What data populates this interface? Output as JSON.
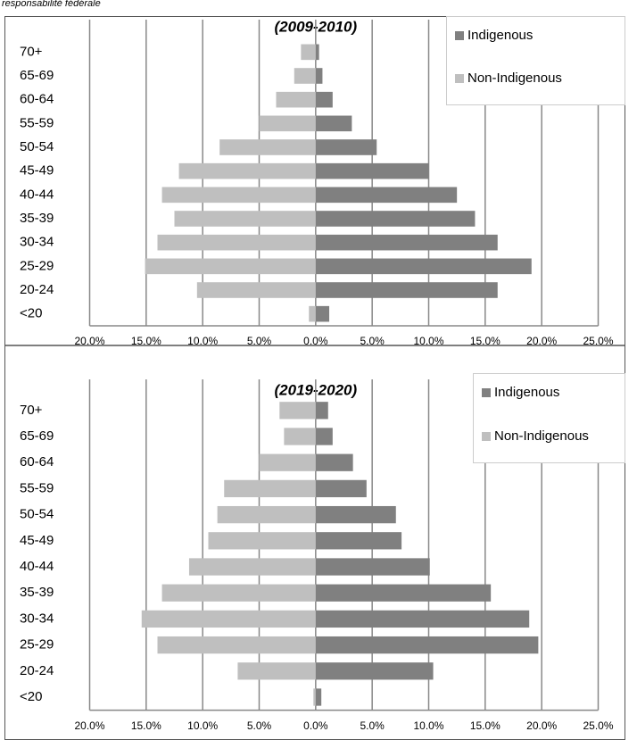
{
  "header": {
    "text": "responsabilité fédérale"
  },
  "chart_data": [
    {
      "type": "bar",
      "orientation": "horizontal",
      "title": "(2009-2010)",
      "categories": [
        "<20",
        "20-24",
        "25-29",
        "30-34",
        "35-39",
        "40-44",
        "45-49",
        "50-54",
        "55-59",
        "60-64",
        "65-69",
        "70+"
      ],
      "series": [
        {
          "name": "Indigenous",
          "color": "#808080",
          "values": [
            1.2,
            16.1,
            19.1,
            16.1,
            14.1,
            12.5,
            10.0,
            5.4,
            3.2,
            1.5,
            0.6,
            0.3
          ]
        },
        {
          "name": "Non-Indigenous",
          "color": "#bfbfbf",
          "values": [
            -0.6,
            -10.5,
            -15.1,
            -14.0,
            -12.5,
            -13.6,
            -12.1,
            -8.5,
            -5.0,
            -3.5,
            -1.9,
            -1.3
          ]
        }
      ],
      "xlim": [
        -20,
        25
      ],
      "xticks": [
        {
          "value": -20,
          "label": "20.0%"
        },
        {
          "value": -15,
          "label": "15.0%"
        },
        {
          "value": -10,
          "label": "10.0%"
        },
        {
          "value": -5,
          "label": "5.0%"
        },
        {
          "value": 0,
          "label": "0.0%"
        },
        {
          "value": 5,
          "label": "5.0%"
        },
        {
          "value": 10,
          "label": "10.0%"
        },
        {
          "value": 15,
          "label": "15.0%"
        },
        {
          "value": 20,
          "label": "20.0%"
        },
        {
          "value": 25,
          "label": "25.0%"
        }
      ],
      "grid": true,
      "legend": "top-right"
    },
    {
      "type": "bar",
      "orientation": "horizontal",
      "title": "(2019-2020)",
      "categories": [
        "<20",
        "20-24",
        "25-29",
        "30-34",
        "35-39",
        "40-44",
        "45-49",
        "50-54",
        "55-59",
        "60-64",
        "65-69",
        "70+"
      ],
      "series": [
        {
          "name": "Indigenous",
          "color": "#808080",
          "values": [
            0.5,
            10.4,
            19.7,
            18.9,
            15.5,
            10.1,
            7.6,
            7.1,
            4.5,
            3.3,
            1.5,
            1.1
          ]
        },
        {
          "name": "Non-Indigenous",
          "color": "#bfbfbf",
          "values": [
            -0.2,
            -6.9,
            -14.0,
            -15.4,
            -13.6,
            -11.2,
            -9.5,
            -8.7,
            -8.1,
            -5.0,
            -2.8,
            -3.2
          ]
        }
      ],
      "xlim": [
        -20,
        25
      ],
      "xticks": [
        {
          "value": -20,
          "label": "20.0%"
        },
        {
          "value": -15,
          "label": "15.0%"
        },
        {
          "value": -10,
          "label": "10.0%"
        },
        {
          "value": -5,
          "label": "5.0%"
        },
        {
          "value": 0,
          "label": "0.0%"
        },
        {
          "value": 5,
          "label": "5.0%"
        },
        {
          "value": 10,
          "label": "10.0%"
        },
        {
          "value": 15,
          "label": "15.0%"
        },
        {
          "value": 20,
          "label": "20.0%"
        },
        {
          "value": 25,
          "label": "25.0%"
        }
      ],
      "grid": true,
      "legend": "top-right"
    }
  ]
}
